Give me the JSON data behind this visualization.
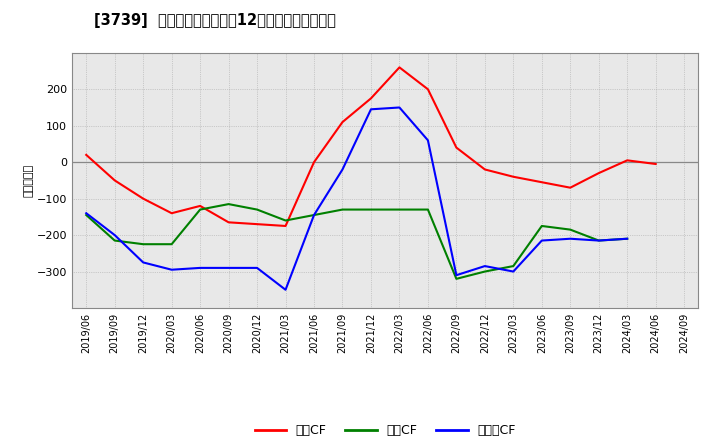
{
  "title": "[㜹] キャッシュフローの12か月移動合計の推移",
  "title_raw": "[3739]  キャッシュフローの12か月移動合計の推移",
  "ylabel": "（百万円）",
  "x_labels": [
    "2019/06",
    "2019/09",
    "2019/12",
    "2020/03",
    "2020/06",
    "2020/09",
    "2020/12",
    "2021/03",
    "2021/06",
    "2021/09",
    "2021/12",
    "2022/03",
    "2022/06",
    "2022/09",
    "2022/12",
    "2023/03",
    "2023/06",
    "2023/09",
    "2023/12",
    "2024/03",
    "2024/06",
    "2024/09"
  ],
  "operating_cf": [
    20,
    -50,
    -100,
    -140,
    -120,
    -165,
    -170,
    -175,
    0,
    110,
    175,
    260,
    200,
    40,
    -20,
    -40,
    -55,
    -70,
    -30,
    5,
    -5,
    null
  ],
  "investing_cf": [
    -145,
    -215,
    -225,
    -225,
    -130,
    -115,
    -130,
    -160,
    -145,
    -130,
    -130,
    -130,
    -130,
    -320,
    -300,
    -285,
    -175,
    -185,
    -215,
    -210,
    null,
    null
  ],
  "free_cf": [
    -140,
    -200,
    -275,
    -295,
    -290,
    -290,
    -290,
    -350,
    -145,
    -20,
    145,
    150,
    60,
    -310,
    -285,
    -300,
    -215,
    -210,
    -215,
    -210,
    null,
    null
  ],
  "operating_color": "#ff0000",
  "investing_color": "#008000",
  "free_cf_color": "#0000ff",
  "bg_color": "#ffffff",
  "plot_bg_color": "#e8e8e8",
  "grid_color": "#aaaaaa",
  "zero_line_color": "#888888",
  "ylim": [
    -400,
    300
  ],
  "yticks": [
    -300,
    -200,
    -100,
    0,
    100,
    200
  ],
  "line_width": 1.5,
  "legend_labels": [
    "営業CF",
    "投資CF",
    "フリーCF"
  ]
}
